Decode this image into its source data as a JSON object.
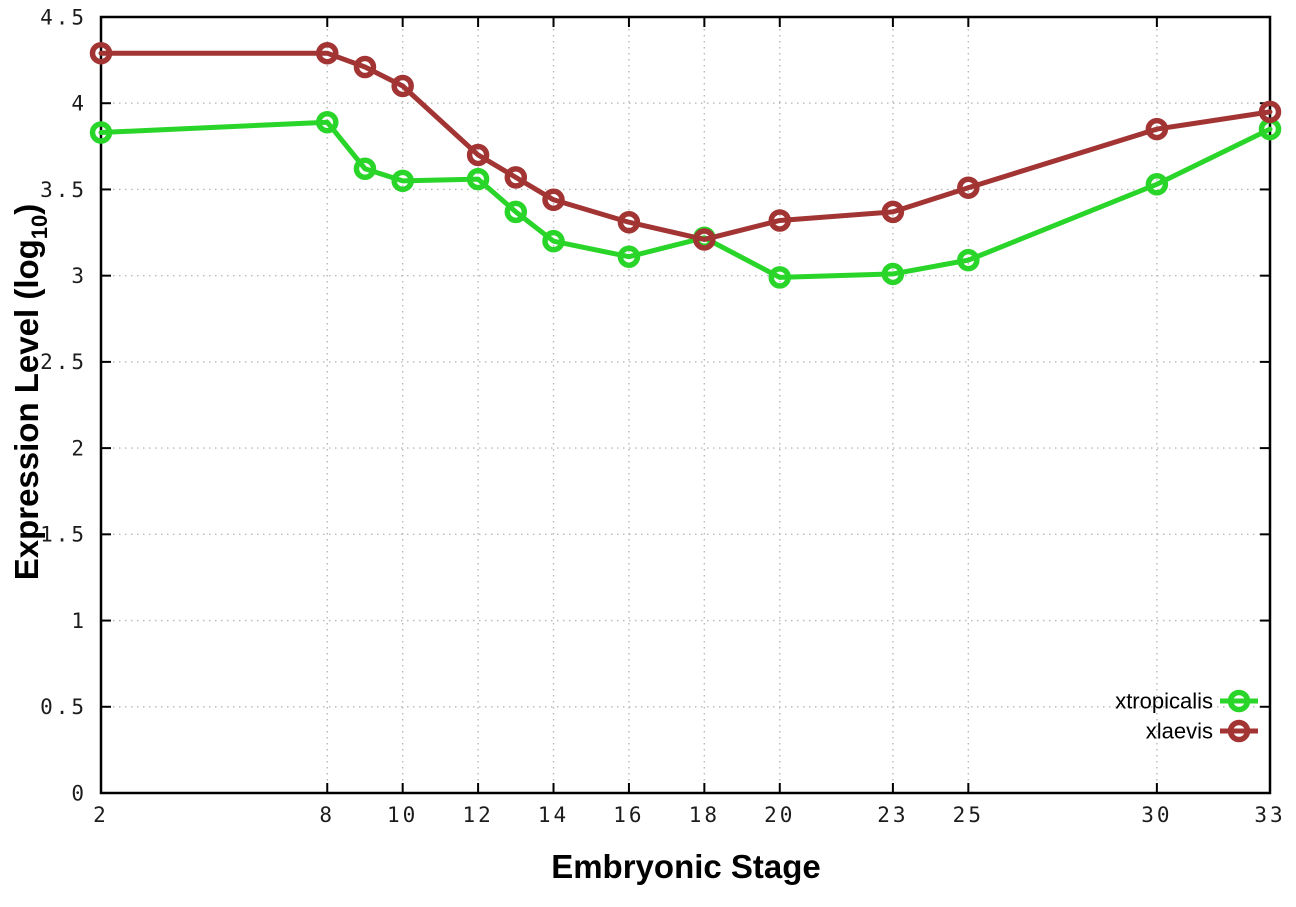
{
  "chart_data": {
    "type": "line",
    "title": "",
    "xlabel": "Embryonic Stage",
    "ylabel": {
      "text": "Expression Level (log",
      "sub": "10",
      "suffix": ")"
    },
    "x": [
      2,
      8,
      9,
      10,
      12,
      13,
      14,
      16,
      18,
      20,
      23,
      25,
      30,
      33
    ],
    "series": [
      {
        "name": "xtropicalis",
        "color": "#2ad52a",
        "values": [
          3.83,
          3.89,
          3.62,
          3.55,
          3.56,
          3.37,
          3.2,
          3.11,
          3.22,
          2.99,
          3.01,
          3.09,
          3.53,
          3.85
        ]
      },
      {
        "name": "xlaevis",
        "color": "#a23434",
        "values": [
          4.29,
          4.29,
          4.21,
          4.1,
          3.7,
          3.57,
          3.44,
          3.31,
          3.21,
          3.32,
          3.37,
          3.51,
          3.85,
          3.95
        ]
      }
    ],
    "xticks": [
      2,
      8,
      10,
      12,
      14,
      16,
      18,
      20,
      23,
      25,
      30,
      33
    ],
    "yticks": [
      0,
      0.5,
      1,
      1.5,
      2,
      2.5,
      3,
      3.5,
      4,
      4.5
    ],
    "xlim": [
      2,
      33
    ],
    "ylim": [
      0,
      4.5
    ],
    "grid": true,
    "grid_style": "dotted",
    "legend_position": "bottom-right",
    "marker": "open-circle",
    "colors": {
      "background": "#ffffff",
      "axis": "#000000",
      "grid": "#b8b8b8",
      "tick_text": "#1c1c1c"
    }
  }
}
